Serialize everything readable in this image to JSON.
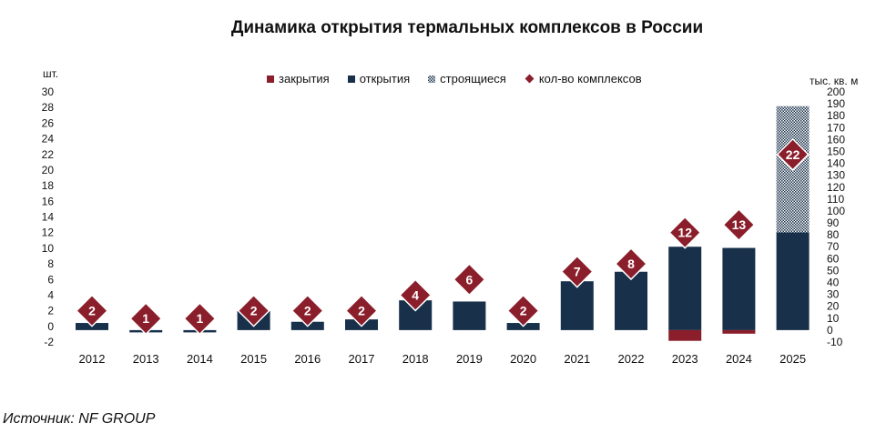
{
  "title": "Динамика открытия термальных комплексов в России",
  "source": "Источник: NF GROUP",
  "colors": {
    "closing": "#8b1e2b",
    "opening": "#18304a",
    "building": "#18304a",
    "count": "#8b1e2b"
  },
  "chart_data": {
    "type": "bar",
    "title": "Динамика открытия термальных комплексов в России",
    "categories": [
      "2012",
      "2013",
      "2014",
      "2015",
      "2016",
      "2017",
      "2018",
      "2019",
      "2020",
      "2021",
      "2022",
      "2023",
      "2024",
      "2025"
    ],
    "left_axis": {
      "unit": "шт.",
      "ylim": [
        -2,
        30
      ],
      "ticks": [
        "30",
        "28",
        "26",
        "24",
        "22",
        "20",
        "18",
        "16",
        "14",
        "12",
        "10",
        "8",
        "6",
        "4",
        "2",
        "0",
        "-2"
      ]
    },
    "right_axis": {
      "unit": "тыс. кв. м",
      "ylim": [
        -10,
        200
      ],
      "ticks": [
        "200",
        "190",
        "180",
        "170",
        "160",
        "150",
        "140",
        "130",
        "120",
        "110",
        "100",
        "90",
        "80",
        "70",
        "60",
        "50",
        "40",
        "30",
        "20",
        "10",
        "0",
        "-10"
      ]
    },
    "legend": [
      "закрытия",
      "открытия",
      "строящиеся",
      "кол-во комплексов"
    ],
    "legend_position": "top",
    "grid": false,
    "series": [
      {
        "name": "закрытия",
        "axis": "right",
        "type": "bar",
        "values": [
          0,
          0,
          0,
          0,
          0,
          0,
          0,
          0,
          0,
          0,
          0,
          -9,
          -3,
          0
        ]
      },
      {
        "name": "открытия",
        "axis": "right",
        "type": "bar",
        "values": [
          6,
          -1,
          -1,
          16,
          7,
          9,
          25,
          24,
          6,
          41,
          49,
          70,
          69,
          82
        ]
      },
      {
        "name": "строящиеся",
        "axis": "right",
        "type": "bar",
        "values": [
          0,
          0,
          0,
          0,
          0,
          0,
          0,
          0,
          0,
          0,
          0,
          0,
          0,
          106
        ]
      },
      {
        "name": "кол-во комплексов",
        "axis": "left",
        "type": "marker",
        "values": [
          2,
          1,
          1,
          2,
          2,
          2,
          4,
          6,
          2,
          7,
          8,
          12,
          13,
          22
        ],
        "labels": [
          "2",
          "1",
          "1",
          "2",
          "2",
          "2",
          "4",
          "6",
          "2",
          "7",
          "8",
          "12",
          "13",
          "22"
        ]
      }
    ]
  }
}
